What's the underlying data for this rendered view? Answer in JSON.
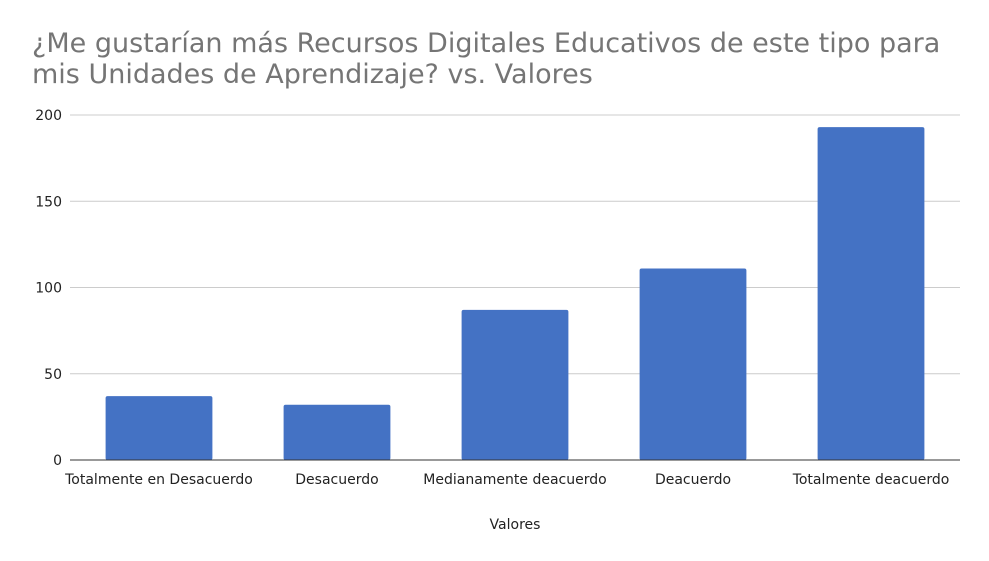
{
  "chart_data": {
    "type": "bar",
    "title": "¿Me gustarían más Recursos Digitales Educativos de este tipo para mis Unidades de Aprendizaje? vs. Valores",
    "xlabel": "Valores",
    "ylabel": "",
    "categories": [
      "Totalmente en Desacuerdo",
      "Desacuerdo",
      "Medianamente deacuerdo",
      "Deacuerdo",
      "Totalmente deacuerdo"
    ],
    "values": [
      37,
      32,
      87,
      111,
      193
    ],
    "ylim": [
      0,
      200
    ],
    "yticks": [
      0,
      50,
      100,
      150,
      200
    ],
    "grid": true,
    "legend": "none",
    "colors": {
      "bar": "#4472c4",
      "grid": "#cccccc",
      "axis": "#333333",
      "title": "#757575"
    }
  }
}
